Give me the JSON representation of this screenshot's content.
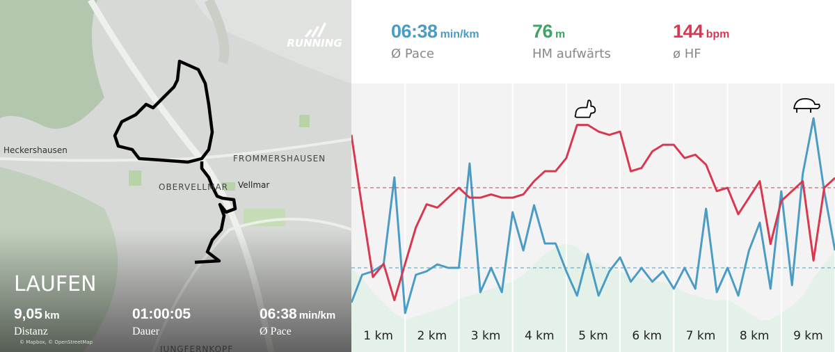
{
  "map": {
    "brand": "RUNNING",
    "activity": "LAUFEN",
    "attribution": "© Mapbox, © OpenStreetMap",
    "places": [
      "Heckershausen",
      "FROMMERSHAUSEN",
      "OBERVELLMAR",
      "Vellmar",
      "JUNGFERNKOPF"
    ],
    "stats": [
      {
        "value": "9,05",
        "unit": "km",
        "label": "Distanz"
      },
      {
        "value": "01:00:05",
        "label": "Dauer"
      },
      {
        "value": "06:38",
        "unit": "min/km",
        "label": "Ø Pace"
      }
    ]
  },
  "summary": [
    {
      "value": "06:38",
      "unit": "min/km",
      "label": "Ø Pace"
    },
    {
      "value": "76",
      "unit": "m",
      "label": "HM aufwärts"
    },
    {
      "value": "144",
      "unit": "bpm",
      "label": "ø HF"
    }
  ],
  "chart_data": {
    "type": "line",
    "x": [
      0,
      0.2,
      0.4,
      0.6,
      0.8,
      1,
      1.2,
      1.4,
      1.6,
      1.8,
      2,
      2.2,
      2.4,
      2.6,
      2.8,
      3,
      3.2,
      3.4,
      3.6,
      3.8,
      4,
      4.2,
      4.4,
      4.6,
      4.8,
      5,
      5.2,
      5.4,
      5.6,
      5.8,
      6,
      6.2,
      6.4,
      6.6,
      6.8,
      7,
      7.2,
      7.4,
      7.6,
      7.8,
      8,
      8.2,
      8.4,
      8.6,
      8.8,
      9
    ],
    "xlim": [
      0,
      9
    ],
    "xticks": [
      {
        "value": 1,
        "label": "1 km"
      },
      {
        "value": 2,
        "label": "2 km"
      },
      {
        "value": 3,
        "label": "3 km"
      },
      {
        "value": 4,
        "label": "4 km"
      },
      {
        "value": 5,
        "label": "5 km"
      },
      {
        "value": 6,
        "label": "6 km"
      },
      {
        "value": 7,
        "label": "7 km"
      },
      {
        "value": 8,
        "label": "8 km"
      },
      {
        "value": 9,
        "label": "9 km"
      }
    ],
    "ylim": [
      104,
      174.5
    ],
    "y2lim": [
      323,
      658
    ],
    "y3lim": [
      180,
      347.5
    ],
    "series": [
      {
        "kind": "area",
        "axis": "y3",
        "color": "#e4f1e8",
        "values": [
          217.5,
          210,
          200,
          192.5,
          185,
          180,
          182.5,
          185,
          187.5,
          190,
          195,
          197.5,
          200,
          202.5,
          205,
          207.5,
          212.5,
          220,
          227.5,
          232.5,
          235,
          232.5,
          225,
          220,
          217.5,
          215,
          212.5,
          210,
          207.5,
          207.5,
          205,
          200,
          197.5,
          195,
          194,
          195,
          190,
          185,
          180,
          180,
          185,
          190,
          197.5,
          210,
          220,
          230
        ]
      },
      {
        "kind": "line",
        "axis": "y2",
        "color": "#4a9cc4",
        "mean": 398,
        "values": [
          348,
          388,
          393,
          403,
          528,
          333,
          388,
          393,
          403,
          398,
          398,
          548,
          363,
          398,
          363,
          478,
          423,
          488,
          433,
          433,
          393,
          358,
          418,
          358,
          393,
          413,
          378,
          398,
          378,
          393,
          368,
          398,
          368,
          483,
          363,
          398,
          358,
          423,
          463,
          368,
          508,
          373,
          533,
          613,
          508,
          423
        ]
      },
      {
        "kind": "line",
        "axis": "y",
        "color": "#d8384f",
        "mean": 144,
        "values": [
          160,
          138,
          117,
          121,
          110,
          121,
          132,
          139,
          138,
          141,
          144,
          141,
          141,
          142,
          141,
          141,
          142,
          146,
          149,
          149,
          153,
          163,
          163,
          161,
          160,
          161,
          149,
          150,
          155,
          157,
          157,
          153,
          154,
          151,
          143,
          144,
          136,
          141,
          146,
          127,
          140,
          143,
          146,
          122,
          144,
          147
        ]
      }
    ]
  }
}
